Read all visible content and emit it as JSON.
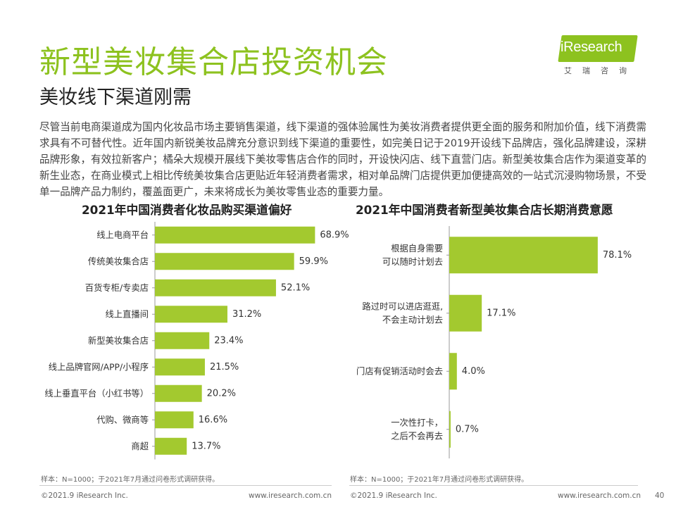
{
  "page": {
    "title": "新型美妆集合店投资机会",
    "subtitle": "美妆线下渠道刚需",
    "body": "尽管当前电商渠道成为国内化妆品市场主要销售渠道，线下渠道的强体验属性为美妆消费者提供更全面的服务和附加价值，线下消费需求具有不可替代性。近年国内新锐美妆品牌充分意识到线下渠道的重要性，如完美日记于2019开设线下品牌店，强化品牌建设，深耕品牌形象，有效拉新客户；橘朵大规模开展线下美妆零售店合作的同时，开设快闪店、线下直营门店。新型美妆集合店作为渠道变革的新生业态，在商业模式上相比传统美妆集合店更贴近年轻消费者需求，相对单品牌门店提供更加便捷高效的一站式沉浸购物场景，不受单一品牌产品力制约，覆盖面更广，未来将成长为美妆零售业态的重要力量。",
    "page_number": "40"
  },
  "logo": {
    "text": "iResearch",
    "subtext": "艾瑞咨询"
  },
  "colors": {
    "accent": "#8dc21f",
    "bar": "#a3c92f",
    "axis": "#999999",
    "text": "#333333"
  },
  "chart_data": [
    {
      "type": "bar",
      "orientation": "horizontal",
      "title": "2021年中国消费者化妆品购买渠道偏好",
      "categories": [
        "线上电商平台",
        "传统美妆集合店",
        "百货专柜/专卖店",
        "线上直播间",
        "新型美妆集合店",
        "线上品牌官网/APP/小程序",
        "线上垂直平台（小红书等）",
        "代购、微商等",
        "商超"
      ],
      "values": [
        68.9,
        59.9,
        52.1,
        31.2,
        23.4,
        21.5,
        20.2,
        16.6,
        13.7
      ],
      "value_labels": [
        "68.9%",
        "59.9%",
        "52.1%",
        "31.2%",
        "23.4%",
        "21.5%",
        "20.2%",
        "16.6%",
        "13.7%"
      ],
      "unit": "%",
      "note": "样本：N=1000；于2021年7月通过问卷形式调研获得。"
    },
    {
      "type": "bar",
      "orientation": "horizontal",
      "title": "2021年中国消费者新型美妆集合店长期消费意愿",
      "categories": [
        [
          "根据自身需要",
          "可以随时计划去"
        ],
        [
          "路过时可以进店逛逛,",
          "不会主动计划去"
        ],
        [
          "门店有促销活动时会去"
        ],
        [
          "一次性打卡，",
          "之后不会再去"
        ]
      ],
      "values": [
        78.1,
        17.1,
        4.0,
        0.7
      ],
      "value_labels": [
        "78.1%",
        "17.1%",
        "4.0%",
        "0.7%"
      ],
      "unit": "%",
      "note": "样本：N=1000；于2021年7月通过问卷形式调研获得。"
    }
  ],
  "footer": {
    "copyright": "©2021.9 iResearch Inc.",
    "website": "www.iresearch.com.cn"
  }
}
